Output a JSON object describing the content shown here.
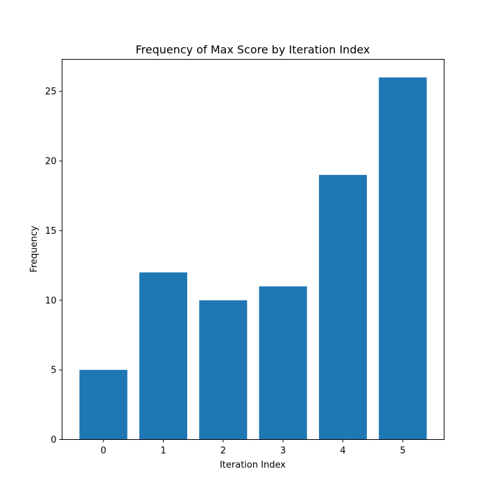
{
  "chart_data": {
    "type": "bar",
    "title": "Frequency of Max Score by Iteration Index",
    "xlabel": "Iteration Index",
    "ylabel": "Frequency",
    "categories": [
      "0",
      "1",
      "2",
      "3",
      "4",
      "5"
    ],
    "values": [
      5,
      12,
      10,
      11,
      19,
      26
    ],
    "ylim": [
      0,
      27.3
    ],
    "yticks": [
      0,
      5,
      10,
      15,
      20,
      25
    ],
    "grid": false,
    "legend": null,
    "bar_color": "#1f77b4"
  }
}
